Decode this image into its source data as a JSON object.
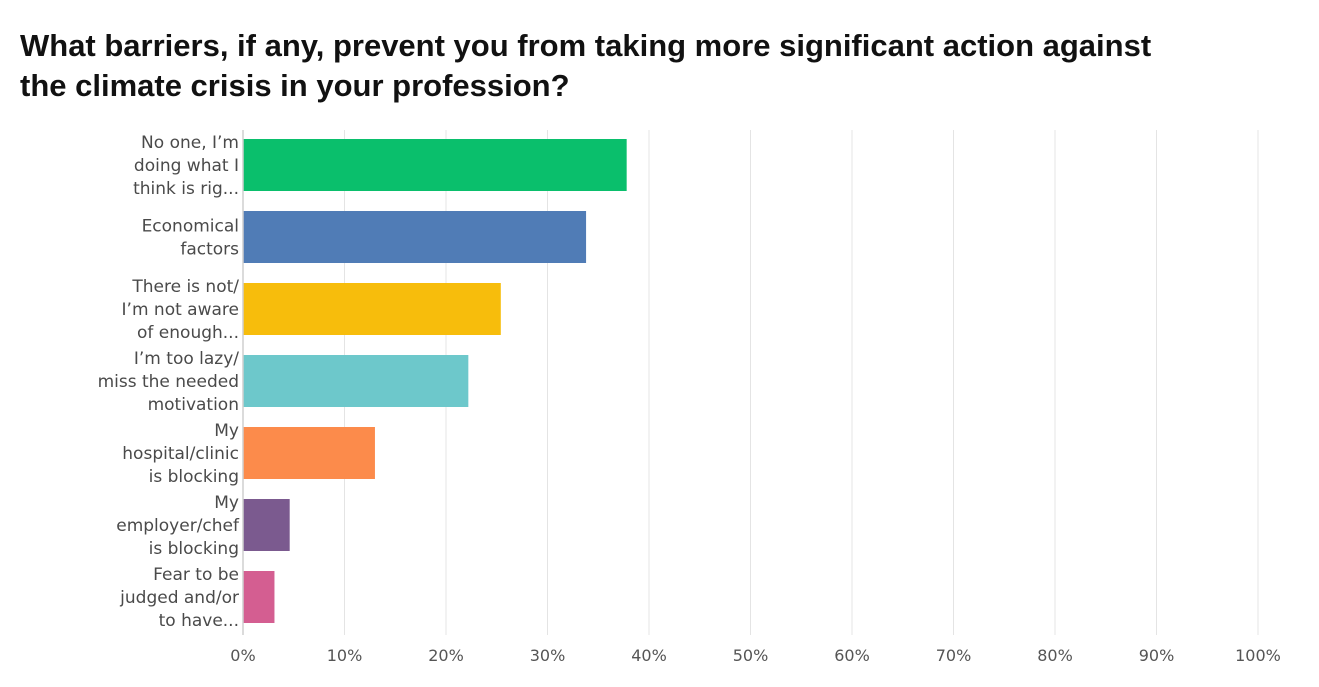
{
  "title_lines": [
    "What barriers, if any, prevent you from taking more significant action against",
    "the climate crisis in your profession?"
  ],
  "chart_data": {
    "type": "bar",
    "orientation": "horizontal",
    "title": "What barriers, if any, prevent you from taking more significant action against the climate crisis in your profession?",
    "categories": [
      [
        "No one, I’m",
        "doing what I",
        "think is rig..."
      ],
      [
        "Economical",
        "factors"
      ],
      [
        "There is not/",
        "I’m not aware",
        "of enough..."
      ],
      [
        "I’m too lazy/",
        "miss the needed",
        "motivation"
      ],
      [
        "My",
        "hospital/clinic",
        "is blocking"
      ],
      [
        "My",
        "employer/chef",
        "is blocking"
      ],
      [
        "Fear to be",
        "judged and/or",
        "to have..."
      ]
    ],
    "values": [
      37.8,
      33.8,
      25.4,
      22.2,
      13.0,
      4.6,
      3.1
    ],
    "colors": [
      "#0abf6c",
      "#507cb6",
      "#f7bd0c",
      "#6dc8cb",
      "#fc8b4b",
      "#7b5a8f",
      "#d45e91"
    ],
    "xlim": [
      0,
      100
    ],
    "ticks": [
      "0%",
      "10%",
      "20%",
      "30%",
      "40%",
      "50%",
      "60%",
      "70%",
      "80%",
      "90%",
      "100%"
    ],
    "tick_values": [
      0,
      10,
      20,
      30,
      40,
      50,
      60,
      70,
      80,
      90,
      100
    ],
    "grid": true,
    "legend": "none",
    "gridline_color": "#e4e4e4",
    "axis_color": "#cfcfcf"
  }
}
